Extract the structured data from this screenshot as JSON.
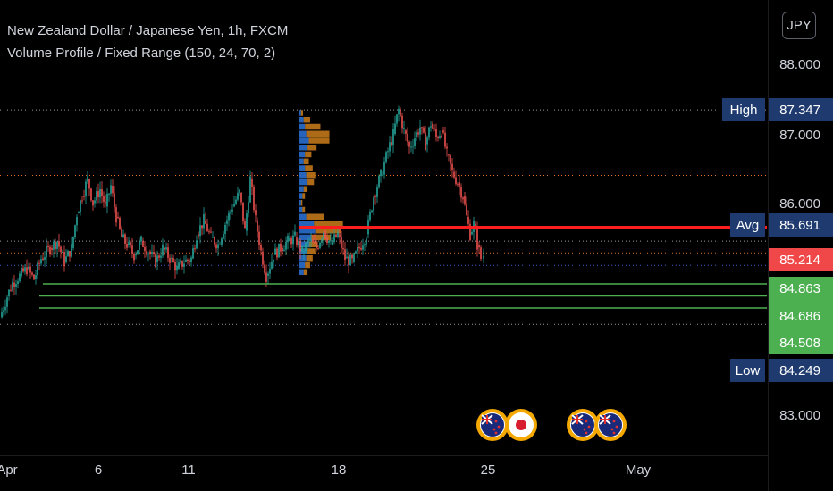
{
  "header": {
    "title": "New Zealand Dollar / Japanese Yen, 1h, FXCM",
    "indicator": "Volume Profile / Fixed Range (150, 24, 70, 2)",
    "currency_button": "JPY"
  },
  "colors": {
    "background": "#000000",
    "candle_up": "#26a69a",
    "candle_down": "#ef5350",
    "profile_up": "#2a6fcf",
    "profile_down": "#c0761a",
    "poc_line": "#ff1e1e",
    "target_lines": "#4caf50",
    "high_low_tag": "#1e3a6e",
    "last_price_tag": "#f04848",
    "orange_dotted": "#e07020",
    "grey_dotted": "#9598a1",
    "blue_dotted": "#3a5ccc"
  },
  "chart_data": {
    "type": "candlestick",
    "symbol": "NZDJPY",
    "timeframe": "1h",
    "x_ticks": [
      "Apr",
      "6",
      "11",
      "18",
      "25",
      "May"
    ],
    "y_ticks": [
      "88.000",
      "87.000",
      "86.000",
      "83.000"
    ],
    "y_range": [
      82.4,
      88.7
    ],
    "levels": [
      {
        "label": "High",
        "value": "87.347",
        "kind": "high"
      },
      {
        "label": "Avg",
        "value": "85.691",
        "kind": "avg"
      },
      {
        "label": "",
        "value": "85.214",
        "kind": "last"
      },
      {
        "label": "",
        "value": "84.863",
        "kind": "target"
      },
      {
        "label": "",
        "value": "84.686",
        "kind": "target"
      },
      {
        "label": "",
        "value": "84.508",
        "kind": "target"
      },
      {
        "label": "Low",
        "value": "84.249",
        "kind": "low"
      }
    ],
    "dotted_levels": [
      86.4,
      85.45,
      85.35
    ],
    "series": [
      {
        "values": [
          [
            0,
            84.35
          ],
          [
            8,
            84.65
          ],
          [
            14,
            84.85
          ],
          [
            22,
            84.95
          ],
          [
            30,
            85.05
          ],
          [
            38,
            84.9
          ],
          [
            46,
            85.2
          ],
          [
            56,
            85.35
          ],
          [
            64,
            85.45
          ],
          [
            72,
            85.15
          ],
          [
            80,
            85.35
          ],
          [
            86,
            85.85
          ],
          [
            92,
            86.1
          ],
          [
            98,
            86.35
          ],
          [
            104,
            86.0
          ],
          [
            112,
            86.2
          ],
          [
            118,
            85.95
          ],
          [
            124,
            86.25
          ],
          [
            130,
            85.8
          ],
          [
            136,
            85.5
          ],
          [
            142,
            85.4
          ],
          [
            150,
            85.25
          ],
          [
            158,
            85.45
          ],
          [
            166,
            85.3
          ],
          [
            174,
            85.15
          ],
          [
            182,
            85.35
          ],
          [
            190,
            85.2
          ],
          [
            198,
            85.05
          ],
          [
            206,
            85.15
          ],
          [
            214,
            85.2
          ],
          [
            220,
            85.55
          ],
          [
            228,
            85.75
          ],
          [
            236,
            85.5
          ],
          [
            244,
            85.4
          ],
          [
            252,
            85.7
          ],
          [
            260,
            85.95
          ],
          [
            268,
            86.15
          ],
          [
            274,
            85.6
          ],
          [
            280,
            86.35
          ],
          [
            286,
            85.75
          ],
          [
            292,
            85.3
          ],
          [
            298,
            84.95
          ],
          [
            306,
            85.25
          ],
          [
            314,
            85.35
          ],
          [
            322,
            85.45
          ],
          [
            330,
            85.5
          ],
          [
            338,
            85.3
          ],
          [
            346,
            85.45
          ],
          [
            354,
            85.35
          ],
          [
            362,
            85.6
          ],
          [
            370,
            85.4
          ],
          [
            378,
            85.55
          ],
          [
            386,
            85.2
          ],
          [
            394,
            85.15
          ],
          [
            402,
            85.35
          ],
          [
            410,
            85.55
          ],
          [
            418,
            86.1
          ],
          [
            426,
            86.4
          ],
          [
            434,
            86.75
          ],
          [
            440,
            87.0
          ],
          [
            446,
            87.35
          ],
          [
            452,
            87.05
          ],
          [
            458,
            86.8
          ],
          [
            464,
            86.95
          ],
          [
            470,
            87.1
          ],
          [
            476,
            86.85
          ],
          [
            482,
            87.15
          ],
          [
            488,
            86.95
          ],
          [
            494,
            87.05
          ],
          [
            500,
            86.7
          ],
          [
            506,
            86.45
          ],
          [
            512,
            86.3
          ],
          [
            518,
            86.1
          ],
          [
            522,
            85.8
          ],
          [
            526,
            85.55
          ],
          [
            530,
            85.7
          ],
          [
            534,
            85.4
          ],
          [
            538,
            85.2
          ],
          [
            541,
            85.25
          ]
        ]
      }
    ],
    "volume_profile": {
      "rows": [
        {
          "price": 87.3,
          "up": 4,
          "down": 3
        },
        {
          "price": 87.2,
          "up": 8,
          "down": 10
        },
        {
          "price": 87.1,
          "up": 10,
          "down": 24
        },
        {
          "price": 87.0,
          "up": 12,
          "down": 36
        },
        {
          "price": 86.9,
          "up": 16,
          "down": 32
        },
        {
          "price": 86.8,
          "up": 14,
          "down": 14
        },
        {
          "price": 86.7,
          "up": 10,
          "down": 10
        },
        {
          "price": 86.6,
          "up": 8,
          "down": 8
        },
        {
          "price": 86.5,
          "up": 10,
          "down": 12
        },
        {
          "price": 86.4,
          "up": 12,
          "down": 14
        },
        {
          "price": 86.3,
          "up": 14,
          "down": 10
        },
        {
          "price": 86.2,
          "up": 8,
          "down": 6
        },
        {
          "price": 86.1,
          "up": 6,
          "down": 4
        },
        {
          "price": 86.0,
          "up": 4,
          "down": 2
        },
        {
          "price": 85.9,
          "up": 6,
          "down": 4
        },
        {
          "price": 85.8,
          "up": 12,
          "down": 28
        },
        {
          "price": 85.7,
          "up": 24,
          "down": 45
        },
        {
          "price": 85.6,
          "up": 26,
          "down": 40
        },
        {
          "price": 85.5,
          "up": 20,
          "down": 30
        },
        {
          "price": 85.4,
          "up": 16,
          "down": 14
        },
        {
          "price": 85.3,
          "up": 14,
          "down": 12
        },
        {
          "price": 85.2,
          "up": 12,
          "down": 10
        },
        {
          "price": 85.1,
          "up": 10,
          "down": 8
        },
        {
          "price": 85.0,
          "up": 8,
          "down": 6
        }
      ]
    },
    "event_markers": [
      {
        "flag": "nz",
        "x": 24.5
      },
      {
        "flag": "jp",
        "x": 25.7
      },
      {
        "flag": "nz",
        "x": 28.3
      },
      {
        "flag": "nz",
        "x": 29.4
      }
    ]
  }
}
